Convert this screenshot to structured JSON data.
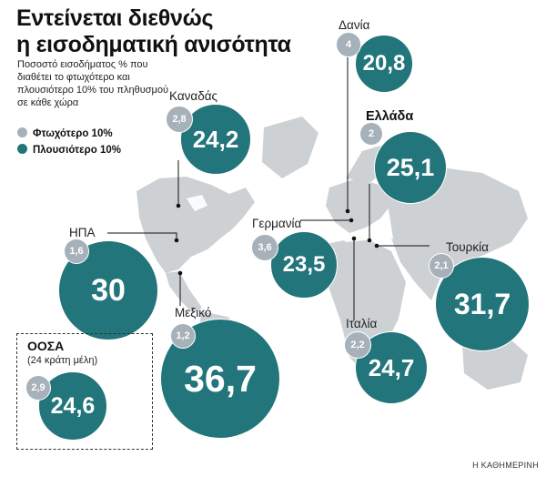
{
  "title_line1": "Εντείνεται διεθνώς",
  "title_line2": "η εισοδηματική ανισότητα",
  "subtitle": "Ποσοστό εισοδήματος % που διαθέτει το φτωχότερο και πλουσιότερο 10% του πληθυσμού σε κάθε χώρα",
  "legend": {
    "poor": "Φτωχότερο 10%",
    "rich": "Πλουσιότερο 10%"
  },
  "colors": {
    "rich": "#22757a",
    "poor": "#a7b1ba",
    "land": "#cdd1d4"
  },
  "countries": [
    {
      "key": "denmark",
      "name": "Δανία",
      "poorest": "4",
      "richest": "20,8"
    },
    {
      "key": "canada",
      "name": "Καναδάς",
      "poorest": "2,8",
      "richest": "24,2"
    },
    {
      "key": "greece",
      "name": "Ελλάδα",
      "poorest": "2",
      "richest": "25,1"
    },
    {
      "key": "germany",
      "name": "Γερμανία",
      "poorest": "3,6",
      "richest": "23,5"
    },
    {
      "key": "usa",
      "name": "ΗΠΑ",
      "poorest": "1,6",
      "richest": "30"
    },
    {
      "key": "turkey",
      "name": "Τουρκία",
      "poorest": "2,1",
      "richest": "31,7"
    },
    {
      "key": "mexico",
      "name": "Μεξικό",
      "poorest": "1,2",
      "richest": "36,7"
    },
    {
      "key": "italy",
      "name": "Ιταλία",
      "poorest": "2,2",
      "richest": "24,7"
    }
  ],
  "oecd": {
    "name": "ΟΟΣΑ",
    "members": "(24 κράτη μέλη)",
    "poorest": "2,9",
    "richest": "24,6"
  },
  "credit": "Η ΚΑΘΗΜΕΡΙΝΗ"
}
